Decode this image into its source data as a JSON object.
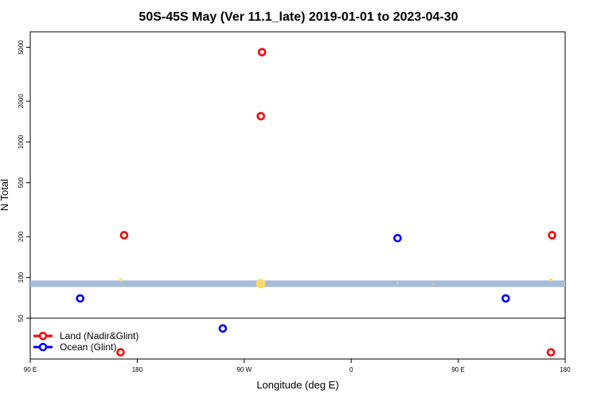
{
  "chart_data": {
    "type": "scatter",
    "title": "50S-45S May (Ver 11.1_late)   2019-01-01 to 2023-04-30",
    "xlabel": "Longitude (deg E)",
    "ylabel": "N Total",
    "x_ticks": [
      "90 E",
      "180",
      "90 W",
      "0",
      "90 E",
      "180"
    ],
    "x_tick_positions": [
      90,
      180,
      270,
      360,
      450,
      540
    ],
    "xlim": [
      90,
      540
    ],
    "y_scale": "log",
    "y_ticks": [
      "50",
      "100",
      "200",
      "500",
      "1000",
      "2000",
      "5000"
    ],
    "y_tick_values": [
      50,
      100,
      200,
      500,
      1000,
      2000,
      5000
    ],
    "ylim": [
      25,
      6500
    ],
    "reference_line_y": 50,
    "band": {
      "y_min": 85,
      "y_max": 95,
      "color": "#a7bcd9"
    },
    "grid": false,
    "legend_position": "bottom-left",
    "colors": {
      "land": "#ff0000",
      "ocean": "#0000ff",
      "marker_fill": "#ffffff",
      "yellow_marks": "#ffd966"
    },
    "series": [
      {
        "name": "Land (Nadir&Glint)",
        "color": "#ff0000",
        "points": [
          {
            "x": 285,
            "y": 4600
          },
          {
            "x": 284,
            "y": 1550
          },
          {
            "x": 169,
            "y": 205
          },
          {
            "x": 166,
            "y": 28
          },
          {
            "x": 529,
            "y": 205
          },
          {
            "x": 528,
            "y": 28
          }
        ]
      },
      {
        "name": "Ocean (Glint)",
        "color": "#0000ff",
        "points": [
          {
            "x": 132,
            "y": 70
          },
          {
            "x": 252,
            "y": 42
          },
          {
            "x": 399,
            "y": 195
          },
          {
            "x": 490,
            "y": 70
          }
        ]
      }
    ],
    "yellow_marks": [
      {
        "x": 166,
        "y": 96,
        "size": 2
      },
      {
        "x": 284,
        "y": 90,
        "size": 6
      },
      {
        "x": 528,
        "y": 96,
        "size": 2
      },
      {
        "x": 429,
        "y": 89,
        "size": 1
      },
      {
        "x": 399,
        "y": 91,
        "size": 1
      }
    ]
  }
}
